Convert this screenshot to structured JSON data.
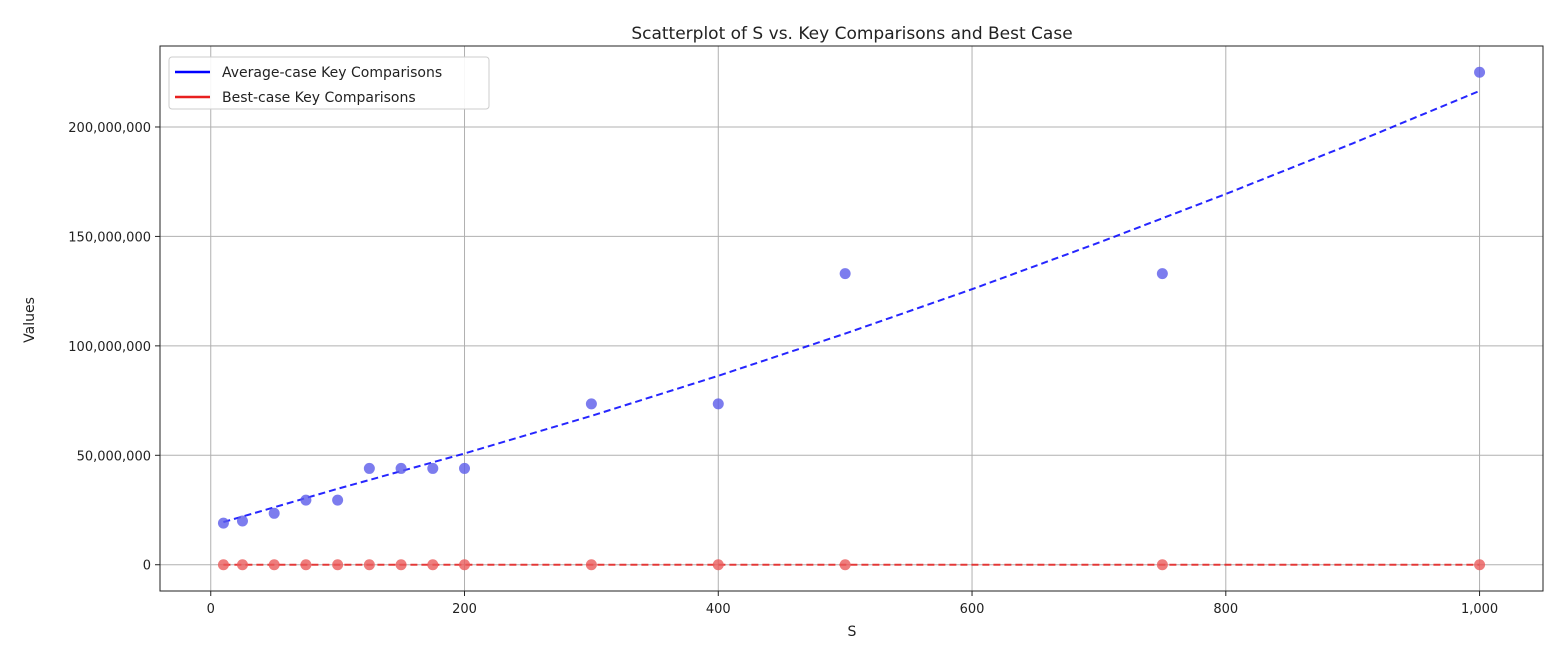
{
  "chart_data": {
    "type": "scatter",
    "title": "Scatterplot of S vs. Key Comparisons and Best Case",
    "xlabel": "S",
    "ylabel": "Values",
    "xlim": [
      -40,
      1050
    ],
    "ylim": [
      -12000000,
      237000000
    ],
    "x_ticks": [
      0,
      200,
      400,
      600,
      800,
      1000
    ],
    "x_tick_labels": [
      "0",
      "200",
      "400",
      "600",
      "800",
      "1,000"
    ],
    "y_ticks": [
      0,
      50000000,
      100000000,
      150000000,
      200000000
    ],
    "y_tick_labels": [
      "0",
      "50,000,000",
      "100,000,000",
      "150,000,000",
      "200,000,000"
    ],
    "grid": true,
    "legend_placement": "top-left",
    "series": [
      {
        "name": "Average-case Key Comparisons",
        "color": "#0000ff",
        "point_color": "#5b5bea",
        "x": [
          10,
          25,
          50,
          75,
          100,
          125,
          150,
          175,
          200,
          300,
          400,
          500,
          750,
          1000
        ],
        "y": [
          19000000,
          20000000,
          23500000,
          29500000,
          29500000,
          44000000,
          44000000,
          44000000,
          44000000,
          73500000,
          73500000,
          133000000,
          133000000,
          225000000
        ],
        "fit": {
          "x": [
            10,
            100,
            200,
            300,
            400,
            500,
            600,
            700,
            800,
            900,
            1000
          ],
          "y": [
            19500000,
            34700000,
            50800000,
            68000000,
            86300000,
            105600000,
            125900000,
            147200000,
            169400000,
            192500000,
            216500000
          ]
        }
      },
      {
        "name": "Best-case Key Comparisons",
        "color": "#e8201f",
        "point_color": "#ea5b5b",
        "x": [
          10,
          25,
          50,
          75,
          100,
          125,
          150,
          175,
          200,
          300,
          400,
          500,
          750,
          1000
        ],
        "y": [
          60,
          150,
          330,
          520,
          720,
          930,
          1150,
          1350,
          1580,
          2500,
          3500,
          4500,
          7100,
          9800
        ],
        "fit": {
          "x": [
            10,
            1000
          ],
          "y": [
            0,
            10000
          ]
        }
      }
    ]
  }
}
